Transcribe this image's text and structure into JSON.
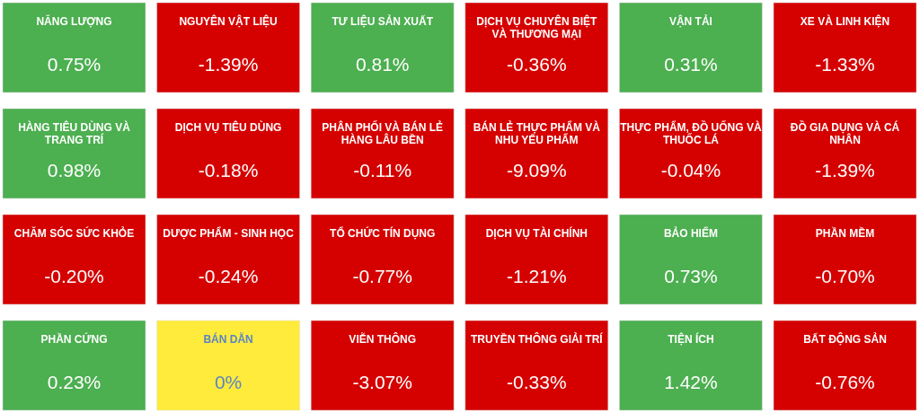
{
  "chart_data": {
    "type": "other",
    "categories": [
      "NĂNG LƯỢNG",
      "NGUYÊN VẬT LIỆU",
      "TƯ LIỆU SẢN XUẤT",
      "DỊCH VỤ CHUYÊN BIỆT VÀ THƯƠNG MẠI",
      "VẬN TẢI",
      "XE VÀ LINH KIỆN",
      "HÀNG TIÊU DÙNG VÀ TRANG TRÍ",
      "DỊCH VỤ TIÊU DÙNG",
      "PHÂN PHỐI VÀ BÁN LẺ HÀNG LÂU BỀN",
      "BÁN LẺ THỰC PHẨM VÀ NHU YẾU PHẨM",
      "THỰC PHẨM, ĐỒ UỐNG VÀ THUỐC LÁ",
      "ĐỒ GIA DỤNG VÀ CÁ NHÂN",
      "CHĂM SÓC SỨC KHỎE",
      "DƯỢC PHẨM - SINH HỌC",
      "TỔ CHỨC TÍN DỤNG",
      "DỊCH VỤ TÀI CHÍNH",
      "BẢO HIỂM",
      "PHẦN MỀM",
      "PHẦN CỨNG",
      "BÁN DẪN",
      "VIỄN THÔNG",
      "TRUYỀN THÔNG GIẢI TRÍ",
      "TIỆN ÍCH",
      "BẤT ĐỘNG SẢN"
    ],
    "values": [
      0.75,
      -1.39,
      0.81,
      -0.36,
      0.31,
      -1.33,
      0.98,
      -0.18,
      -0.11,
      -9.09,
      -0.04,
      -1.39,
      -0.2,
      -0.24,
      -0.77,
      -1.21,
      0.73,
      -0.7,
      0.23,
      0,
      -3.07,
      -0.33,
      1.42,
      -0.76
    ],
    "value_labels": [
      "0.75%",
      "-1.39%",
      "0.81%",
      "-0.36%",
      "0.31%",
      "-1.33%",
      "0.98%",
      "-0.18%",
      "-0.11%",
      "-9.09%",
      "-0.04%",
      "-1.39%",
      "-0.20%",
      "-0.24%",
      "-0.77%",
      "-1.21%",
      "0.73%",
      "-0.70%",
      "0.23%",
      "0%",
      "-3.07%",
      "-0.33%",
      "1.42%",
      "-0.76%"
    ],
    "colors": [
      "#4caf50",
      "#d50000",
      "#4caf50",
      "#d50000",
      "#4caf50",
      "#d50000",
      "#4caf50",
      "#d50000",
      "#d50000",
      "#d50000",
      "#d50000",
      "#d50000",
      "#d50000",
      "#d50000",
      "#d50000",
      "#d50000",
      "#4caf50",
      "#d50000",
      "#4caf50",
      "#ffeb3b",
      "#d50000",
      "#d50000",
      "#4caf50",
      "#d50000"
    ]
  }
}
